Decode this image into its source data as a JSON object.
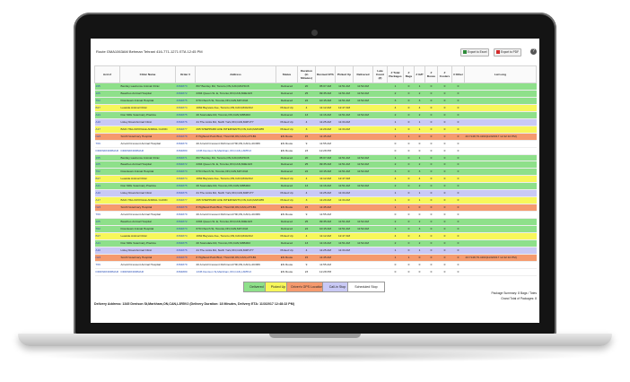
{
  "header": {
    "route_info": "Route GMA1063AM Behman Tehrani 416-771-1271 ETA 12:45 PM",
    "export_excel": "Export to Excel",
    "export_pdf": "Export to PDF",
    "help": "?"
  },
  "table": {
    "columns": [
      "Acct.#",
      "Clinic Name",
      "Order #",
      "Address",
      "Status",
      "Duration (in Minutes)",
      "Revised ETA",
      "Picked Up",
      "Delivered",
      "Late Count (#)",
      "# Total Packages",
      "# Bags",
      "# G/P",
      "# Boxes",
      "# Coolers",
      "# Other",
      "Lat Long"
    ],
    "rows": [
      {
        "acct": "195",
        "clinic": "Bentley Lawrence Animal Clinic",
        "order": "3364873",
        "address": "807 Bentley Rd, Toronto,ON,CAN,M1P4C8",
        "status": "Delivered",
        "duration": "20",
        "eta": "05:07 AM",
        "picked": "11:51 AM",
        "delivered": "11:52 AM",
        "late": "",
        "total": "1",
        "bags": "0",
        "gp": "1",
        "boxes": "0",
        "coolers": "0",
        "other": "0",
        "latlong": "",
        "color": "#8ee08a"
      },
      {
        "acct": "105",
        "clinic": "Beaches Animal Hospital",
        "order": "3364872",
        "address": "2304 Queen St. E, Toronto,ON,CAN,M4E1G5",
        "status": "Delivered",
        "duration": "25",
        "eta": "09:35 AM",
        "picked": "11:51 AM",
        "delivered": "11:52 AM",
        "late": "",
        "total": "2",
        "bags": "0",
        "gp": "2",
        "boxes": "0",
        "coolers": "0",
        "other": "0",
        "latlong": "",
        "color": "#8ee08a"
      },
      {
        "acct": "T02",
        "clinic": "Downtown Animal Hospital",
        "order": "3364875",
        "address": "679 Church St, Toronto,ON,CAN,M4Y2G6",
        "status": "Delivered",
        "duration": "22",
        "eta": "10:15 AM",
        "picked": "11:51 AM",
        "delivered": "11:52 AM",
        "late": "",
        "total": "3",
        "bags": "0",
        "gp": "3",
        "boxes": "0",
        "coolers": "0",
        "other": "0",
        "latlong": "",
        "color": "#8ee08a"
      },
      {
        "acct": "B27",
        "clinic": "Leaside Animal Clinic",
        "order": "3364874",
        "address": "1662 Bayview Ave, Toronto,ON,CAN,M4G3C2",
        "status": "Picked Up",
        "duration": "4",
        "eta": "11:12 AM",
        "picked": "12:47 AM",
        "delivered": "",
        "late": "",
        "total": "4",
        "bags": "0",
        "gp": "4",
        "boxes": "0",
        "coolers": "0",
        "other": "0",
        "latlong": "",
        "color": "#f7f75a"
      },
      {
        "acct": "A21",
        "clinic": "Don Mills Veterinary Practice",
        "order": "3364875",
        "address": "20 Scarsdale Rd, Toronto,ON,CAN,M3B2R2",
        "status": "Delivered",
        "duration": "13",
        "eta": "11:16 AM",
        "picked": "11:51 AM",
        "delivered": "11:52 AM",
        "late": "",
        "total": "2",
        "bags": "0",
        "gp": "2",
        "boxes": "0",
        "coolers": "0",
        "other": "0",
        "latlong": "",
        "color": "#8ee08a"
      },
      {
        "acct": "A10",
        "clinic": "Lisley Road Animal Clinic",
        "order": "3364876",
        "address": "41 The Links Rd, North York,ON,CAN,M2P1T7",
        "status": "Picked Up",
        "duration": "4",
        "eta": "11:25 AM",
        "picked": "11:34 AM",
        "delivered": "",
        "late": "",
        "total": "1",
        "bags": "0",
        "gp": "1",
        "boxes": "0",
        "coolers": "0",
        "other": "0",
        "latlong": "",
        "color": "#c9c9f5"
      },
      {
        "acct": "A17",
        "clinic": "BAIC HILLCROVALE ANIMAL CLINIC",
        "order": "3364877",
        "address": "295 SHEPPARD AVE INTERVENTN,ON,CAN,M2K1B5",
        "status": "Picked Up",
        "duration": "3",
        "eta": "11:29 AM",
        "picked": "11:34 AM",
        "delivered": "",
        "late": "",
        "total": "1",
        "bags": "0",
        "gp": "1",
        "boxes": "0",
        "coolers": "0",
        "other": "0",
        "latlong": "",
        "color": "#f7f75a"
      },
      {
        "acct": "N23",
        "clinic": "Smith Veterinary Hospital",
        "order": "3364878",
        "address": "8 Highland Park Blvd, Thornhill,ON,CAN,L3T1B1",
        "status": "EN Route",
        "duration": "15",
        "eta": "11:45 AM",
        "picked": "",
        "delivered": "",
        "late": "",
        "total": "1",
        "bags": "1",
        "gp": "0",
        "boxes": "0",
        "coolers": "0",
        "other": "0",
        "latlong": "43.7148,79.4193(11/3/2017 12:42:10 PM)",
        "color": "#f59a6e"
      },
      {
        "acct": "T09",
        "clinic": "Arnold Crescent Animal Hospital",
        "order": "3364879",
        "address": "20 Arnold Crescent Richmond Hill,ON,CAN,L4C3R6",
        "status": "EN Route",
        "duration": "9",
        "eta": "11:55 AM",
        "picked": "",
        "delivered": "",
        "late": "",
        "total": "0",
        "bags": "0",
        "gp": "0",
        "boxes": "0",
        "coolers": "0",
        "other": "0",
        "latlong": "",
        "color": "#ffffff"
      },
      {
        "acct": "DDDWDNDRMAR",
        "clinic": "DDDWDNDRMAR",
        "order": "3364880",
        "address": "1345 Denison St,Markham,ON,CAN,L3R5V2",
        "status": "EN Route",
        "duration": "23",
        "eta": "12:28 PM",
        "picked": "",
        "delivered": "",
        "late": "",
        "total": "0",
        "bags": "0",
        "gp": "0",
        "boxes": "0",
        "coolers": "0",
        "other": "0",
        "latlong": "",
        "color": "#ffffff",
        "link": true
      },
      {
        "acct": "195",
        "clinic": "Bentley Lawrence Animal Clinic",
        "order": "3364871",
        "address": "807 Bentley Rd, Toronto,ON,CAN,M1P4C8",
        "status": "Delivered",
        "duration": "20",
        "eta": "05:07 AM",
        "picked": "11:51 AM",
        "delivered": "11:52 AM",
        "late": "",
        "total": "1",
        "bags": "0",
        "gp": "1",
        "boxes": "0",
        "coolers": "0",
        "other": "0",
        "latlong": "",
        "color": "#8ee08a"
      },
      {
        "acct": "105",
        "clinic": "Beaches Animal Hospital",
        "order": "3364872",
        "address": "2304 Queen St. E, Toronto,ON,CAN,M4E1G5",
        "status": "Delivered",
        "duration": "25",
        "eta": "09:35 AM",
        "picked": "11:51 AM",
        "delivered": "11:52 AM",
        "late": "",
        "total": "2",
        "bags": "0",
        "gp": "2",
        "boxes": "0",
        "coolers": "0",
        "other": "0",
        "latlong": "",
        "color": "#8ee08a"
      },
      {
        "acct": "T02",
        "clinic": "Downtown Animal Hospital",
        "order": "3364873",
        "address": "679 Church St, Toronto,ON,CAN,M4Y2G6",
        "status": "Delivered",
        "duration": "22",
        "eta": "10:15 AM",
        "picked": "11:51 AM",
        "delivered": "11:52 AM",
        "late": "",
        "total": "3",
        "bags": "0",
        "gp": "3",
        "boxes": "0",
        "coolers": "0",
        "other": "0",
        "latlong": "",
        "color": "#8ee08a"
      },
      {
        "acct": "B27",
        "clinic": "Leaside Animal Clinic",
        "order": "3364874",
        "address": "1662 Bayview Ave, Toronto,ON,CAN,M4G3C2",
        "status": "Picked Up",
        "duration": "4",
        "eta": "11:12 AM",
        "picked": "12:47 AM",
        "delivered": "",
        "late": "",
        "total": "4",
        "bags": "0",
        "gp": "4",
        "boxes": "0",
        "coolers": "0",
        "other": "0",
        "latlong": "",
        "color": "#f7f75a"
      },
      {
        "acct": "A21",
        "clinic": "Don Mills Veterinary Practice",
        "order": "3364875",
        "address": "20 Scarsdale Rd, Toronto,ON,CAN,M3B2R2",
        "status": "Delivered",
        "duration": "13",
        "eta": "11:16 AM",
        "picked": "11:51 AM",
        "delivered": "11:52 AM",
        "late": "",
        "total": "2",
        "bags": "0",
        "gp": "2",
        "boxes": "0",
        "coolers": "0",
        "other": "0",
        "latlong": "",
        "color": "#8ee08a"
      },
      {
        "acct": "A10",
        "clinic": "Lisley Road Animal Clinic",
        "order": "3364876",
        "address": "41 The Links Rd, North York,ON,CAN,M2P1T7",
        "status": "Picked Up",
        "duration": "4",
        "eta": "11:25 AM",
        "picked": "11:34 AM",
        "delivered": "",
        "late": "",
        "total": "1",
        "bags": "0",
        "gp": "1",
        "boxes": "0",
        "coolers": "0",
        "other": "0",
        "latlong": "",
        "color": "#c9c9f5"
      },
      {
        "acct": "A17",
        "clinic": "BAIC HILLCROVALE ANIMAL CLINIC",
        "order": "3364877",
        "address": "295 SHEPPARD AVE INTERVENTN,ON,CAN,M2K1B5",
        "status": "Picked Up",
        "duration": "3",
        "eta": "11:29 AM",
        "picked": "11:34 AM",
        "delivered": "",
        "late": "",
        "total": "1",
        "bags": "0",
        "gp": "1",
        "boxes": "0",
        "coolers": "0",
        "other": "0",
        "latlong": "",
        "color": "#f7f75a"
      },
      {
        "acct": "N23",
        "clinic": "Smith Veterinary Hospital",
        "order": "3364878",
        "address": "8 Highland Park Blvd, Thornhill,ON,CAN,L3T1B1",
        "status": "EN Route",
        "duration": "15",
        "eta": "11:45 AM",
        "picked": "",
        "delivered": "",
        "late": "",
        "total": "1",
        "bags": "1",
        "gp": "0",
        "boxes": "0",
        "coolers": "0",
        "other": "0",
        "latlong": "",
        "color": "#f59a6e"
      },
      {
        "acct": "T09",
        "clinic": "Arnold Crescent Animal Hospital",
        "order": "3364879",
        "address": "20 Arnold Crescent Richmond Hill,ON,CAN,L4C3R6",
        "status": "EN Route",
        "duration": "9",
        "eta": "11:55 AM",
        "picked": "",
        "delivered": "",
        "late": "",
        "total": "0",
        "bags": "0",
        "gp": "0",
        "boxes": "0",
        "coolers": "0",
        "other": "0",
        "latlong": "",
        "color": "#ffffff"
      },
      {
        "acct": "105",
        "clinic": "Beaches Animal Hospital",
        "order": "3364872",
        "address": "2304 Queen St. E, Toronto,ON,CAN,M4E1G5",
        "status": "Delivered",
        "duration": "25",
        "eta": "09:35 AM",
        "picked": "11:51 AM",
        "delivered": "11:52 AM",
        "late": "",
        "total": "2",
        "bags": "0",
        "gp": "2",
        "boxes": "0",
        "coolers": "0",
        "other": "0",
        "latlong": "",
        "color": "#8ee08a"
      },
      {
        "acct": "T02",
        "clinic": "Downtown Animal Hospital",
        "order": "3364873",
        "address": "679 Church St, Toronto,ON,CAN,M4Y2G6",
        "status": "Delivered",
        "duration": "22",
        "eta": "10:15 AM",
        "picked": "11:51 AM",
        "delivered": "11:52 AM",
        "late": "",
        "total": "3",
        "bags": "0",
        "gp": "3",
        "boxes": "0",
        "coolers": "0",
        "other": "0",
        "latlong": "",
        "color": "#8ee08a"
      },
      {
        "acct": "B27",
        "clinic": "Leaside Animal Clinic",
        "order": "3364874",
        "address": "1662 Bayview Ave, Toronto,ON,CAN,M4G3C2",
        "status": "Picked Up",
        "duration": "4",
        "eta": "11:12 AM",
        "picked": "12:47 AM",
        "delivered": "",
        "late": "",
        "total": "4",
        "bags": "0",
        "gp": "4",
        "boxes": "0",
        "coolers": "0",
        "other": "0",
        "latlong": "",
        "color": "#f7f75a"
      },
      {
        "acct": "A21",
        "clinic": "Don Mills Veterinary Practice",
        "order": "3364875",
        "address": "20 Scarsdale Rd, Toronto,ON,CAN,M3B2R2",
        "status": "Delivered",
        "duration": "13",
        "eta": "11:16 AM",
        "picked": "11:51 AM",
        "delivered": "11:52 AM",
        "late": "",
        "total": "2",
        "bags": "0",
        "gp": "2",
        "boxes": "0",
        "coolers": "0",
        "other": "0",
        "latlong": "",
        "color": "#8ee08a"
      },
      {
        "acct": "A10",
        "clinic": "Lisley Road Animal Clinic",
        "order": "3364876",
        "address": "41 The Links Rd, North York,ON,CAN,M2P1T7",
        "status": "Picked Up",
        "duration": "4",
        "eta": "11:25 AM",
        "picked": "11:34 AM",
        "delivered": "",
        "late": "",
        "total": "1",
        "bags": "0",
        "gp": "1",
        "boxes": "0",
        "coolers": "0",
        "other": "0",
        "latlong": "",
        "color": "#c9c9f5"
      },
      {
        "acct": "N23",
        "clinic": "Smith Veterinary Hospital",
        "order": "3364878",
        "address": "8 Highland Park Blvd, Thornhill,ON,CAN,L3T1B1",
        "status": "EN Route",
        "duration": "15",
        "eta": "11:45 AM",
        "picked": "",
        "delivered": "",
        "late": "",
        "total": "1",
        "bags": "1",
        "gp": "0",
        "boxes": "0",
        "coolers": "0",
        "other": "0",
        "latlong": "43.7148,79.4193(11/3/2017 12:42:10 PM)",
        "color": "#f59a6e"
      },
      {
        "acct": "T09",
        "clinic": "Arnold Crescent Animal Hospital",
        "order": "3364879",
        "address": "20 Arnold Crescent Richmond Hill,ON,CAN,L4C3R6",
        "status": "EN Route",
        "duration": "9",
        "eta": "11:55 AM",
        "picked": "",
        "delivered": "",
        "late": "",
        "total": "0",
        "bags": "0",
        "gp": "0",
        "boxes": "0",
        "coolers": "0",
        "other": "0",
        "latlong": "",
        "color": "#ffffff"
      },
      {
        "acct": "DDDWDNDRMAR",
        "clinic": "DDDWDNDRMAR",
        "order": "3364880",
        "address": "1345 Denison St,Markham,ON,CAN,L3R5V2",
        "status": "EN Route",
        "duration": "23",
        "eta": "12:28 PM",
        "picked": "",
        "delivered": "",
        "late": "",
        "total": "0",
        "bags": "0",
        "gp": "0",
        "boxes": "0",
        "coolers": "0",
        "other": "0",
        "latlong": "",
        "color": "#ffffff",
        "link": true
      }
    ]
  },
  "legend": [
    {
      "label": "Delivered",
      "color": "#8ee08a"
    },
    {
      "label": "Picked Up",
      "color": "#f7f75a"
    },
    {
      "label": "Driver's GPS Location",
      "color": "#f59a6e"
    },
    {
      "label": "Call-in Stop",
      "color": "#c9c9f5"
    },
    {
      "label": "Scheduled Stop",
      "color": "#ffffff"
    }
  ],
  "summary": {
    "package_summary": "Package Summary: 8 Bags / Totes",
    "grand_total": "Grand Total of Packages: 8"
  },
  "delivery_address": "Delivery Address: 1345 Denison St,Markham,ON,CAN,L3R5V2 (Delivery Duration: 18 Minutes, Delivery ETA: 11/3/2017 12:48:22 PM)"
}
